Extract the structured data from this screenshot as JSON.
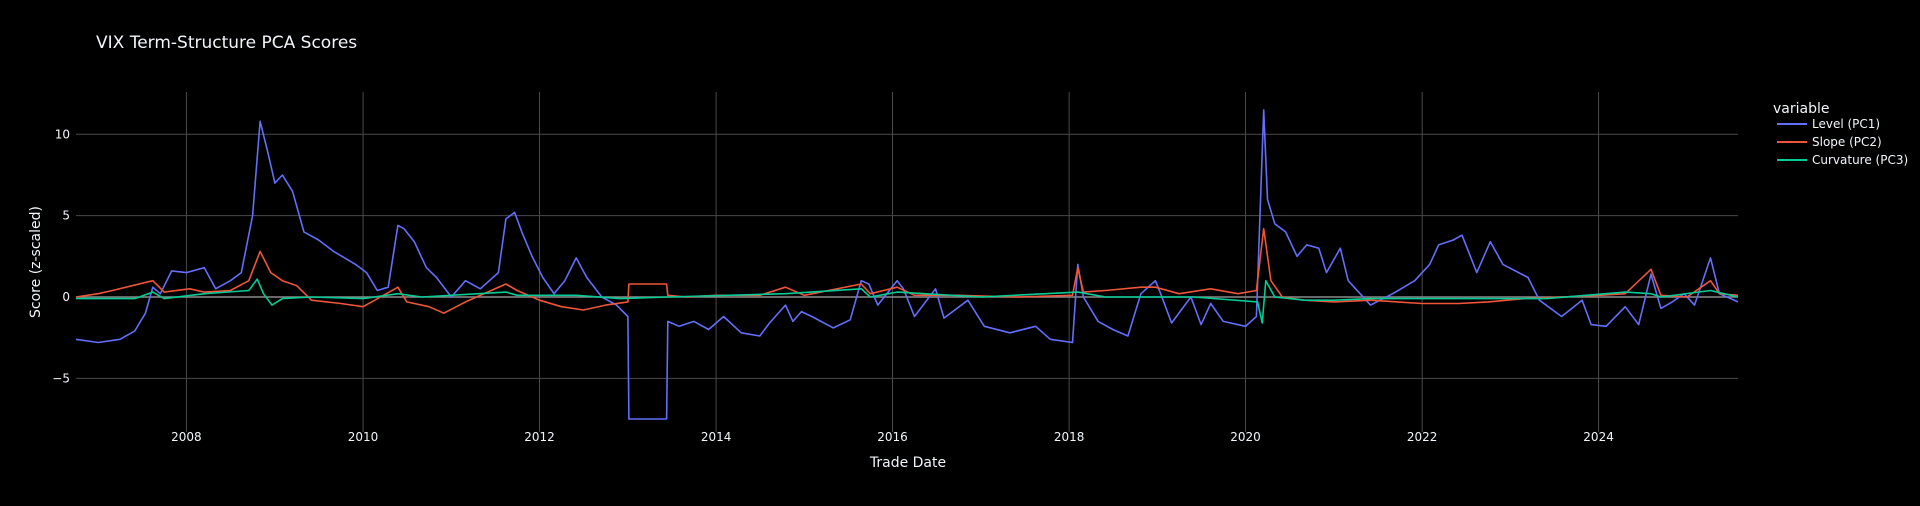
{
  "chart_data": {
    "type": "line",
    "title": "VIX Term-Structure PCA Scores",
    "xlabel": "Trade Date",
    "ylabel": "Score (z-scaled)",
    "x_range": [
      "2006-10-01",
      "2025-07-31"
    ],
    "ylim": [
      -8.3,
      12.6
    ],
    "x_ticks": [
      "2008",
      "2010",
      "2012",
      "2014",
      "2016",
      "2018",
      "2020",
      "2022",
      "2024"
    ],
    "y_ticks": [
      -5,
      0,
      5,
      10
    ],
    "y_tick_labels": [
      "−5",
      "0",
      "5",
      "10"
    ],
    "grid": true,
    "legend": {
      "title": "variable",
      "placement": "right"
    },
    "series": [
      {
        "name": "Level (PC1)",
        "color": "#636efa",
        "points": [
          [
            "2006-10-01",
            -2.6
          ],
          [
            "2007-01-01",
            -2.8
          ],
          [
            "2007-04-01",
            -2.6
          ],
          [
            "2007-06-01",
            -2.1
          ],
          [
            "2007-07-15",
            -1.0
          ],
          [
            "2007-08-15",
            0.6
          ],
          [
            "2007-09-15",
            0.2
          ],
          [
            "2007-11-01",
            1.6
          ],
          [
            "2008-01-01",
            1.5
          ],
          [
            "2008-03-15",
            1.8
          ],
          [
            "2008-05-01",
            0.5
          ],
          [
            "2008-07-01",
            1.0
          ],
          [
            "2008-08-15",
            1.5
          ],
          [
            "2008-10-01",
            5.0
          ],
          [
            "2008-11-01",
            10.8
          ],
          [
            "2008-12-01",
            9.0
          ],
          [
            "2009-01-01",
            7.0
          ],
          [
            "2009-02-01",
            7.5
          ],
          [
            "2009-03-15",
            6.5
          ],
          [
            "2009-05-01",
            4.0
          ],
          [
            "2009-07-01",
            3.5
          ],
          [
            "2009-09-01",
            2.8
          ],
          [
            "2009-12-01",
            2.0
          ],
          [
            "2010-01-15",
            1.5
          ],
          [
            "2010-03-01",
            0.4
          ],
          [
            "2010-04-15",
            0.6
          ],
          [
            "2010-05-25",
            4.4
          ],
          [
            "2010-06-20",
            4.2
          ],
          [
            "2010-08-01",
            3.4
          ],
          [
            "2010-09-20",
            1.8
          ],
          [
            "2010-11-01",
            1.2
          ],
          [
            "2011-01-01",
            0.0
          ],
          [
            "2011-03-01",
            1.0
          ],
          [
            "2011-05-01",
            0.5
          ],
          [
            "2011-07-15",
            1.5
          ],
          [
            "2011-08-15",
            4.8
          ],
          [
            "2011-09-20",
            5.2
          ],
          [
            "2011-10-20",
            4.0
          ],
          [
            "2011-12-01",
            2.5
          ],
          [
            "2012-01-15",
            1.2
          ],
          [
            "2012-03-01",
            0.2
          ],
          [
            "2012-04-15",
            1.0
          ],
          [
            "2012-06-01",
            2.4
          ],
          [
            "2012-07-15",
            1.2
          ],
          [
            "2012-09-15",
            0.0
          ],
          [
            "2012-11-15",
            -0.5
          ],
          [
            "2013-01-01",
            -1.2
          ],
          [
            "2013-01-05",
            -7.5
          ],
          [
            "2013-06-10",
            -7.5
          ],
          [
            "2013-06-15",
            -1.5
          ],
          [
            "2013-08-01",
            -1.8
          ],
          [
            "2013-10-01",
            -1.5
          ],
          [
            "2013-12-01",
            -2.0
          ],
          [
            "2014-02-01",
            -1.2
          ],
          [
            "2014-04-15",
            -2.2
          ],
          [
            "2014-07-01",
            -2.4
          ],
          [
            "2014-08-10",
            -1.6
          ],
          [
            "2014-10-15",
            -0.5
          ],
          [
            "2014-11-15",
            -1.5
          ],
          [
            "2014-12-20",
            -0.9
          ],
          [
            "2015-02-01",
            -1.2
          ],
          [
            "2015-05-01",
            -1.9
          ],
          [
            "2015-07-10",
            -1.4
          ],
          [
            "2015-08-25",
            1.0
          ],
          [
            "2015-09-25",
            0.8
          ],
          [
            "2015-11-01",
            -0.5
          ],
          [
            "2016-01-20",
            1.0
          ],
          [
            "2016-02-15",
            0.5
          ],
          [
            "2016-04-01",
            -1.2
          ],
          [
            "2016-06-27",
            0.5
          ],
          [
            "2016-08-01",
            -1.3
          ],
          [
            "2016-11-08",
            -0.2
          ],
          [
            "2017-01-15",
            -1.8
          ],
          [
            "2017-05-01",
            -2.2
          ],
          [
            "2017-08-15",
            -1.8
          ],
          [
            "2017-10-15",
            -2.6
          ],
          [
            "2018-01-15",
            -2.8
          ],
          [
            "2018-02-06",
            2.0
          ],
          [
            "2018-03-01",
            0.0
          ],
          [
            "2018-05-01",
            -1.5
          ],
          [
            "2018-07-01",
            -2.0
          ],
          [
            "2018-09-01",
            -2.4
          ],
          [
            "2018-10-25",
            0.2
          ],
          [
            "2018-12-24",
            1.0
          ],
          [
            "2019-01-15",
            0.2
          ],
          [
            "2019-03-01",
            -1.6
          ],
          [
            "2019-05-20",
            0.0
          ],
          [
            "2019-07-01",
            -1.7
          ],
          [
            "2019-08-10",
            -0.4
          ],
          [
            "2019-10-01",
            -1.5
          ],
          [
            "2020-01-01",
            -1.8
          ],
          [
            "2020-02-15",
            -1.2
          ],
          [
            "2020-03-16",
            11.5
          ],
          [
            "2020-04-01",
            6.0
          ],
          [
            "2020-05-01",
            4.5
          ],
          [
            "2020-06-15",
            4.0
          ],
          [
            "2020-08-01",
            2.5
          ],
          [
            "2020-09-10",
            3.2
          ],
          [
            "2020-10-30",
            3.0
          ],
          [
            "2020-12-01",
            1.5
          ],
          [
            "2021-01-27",
            3.0
          ],
          [
            "2021-03-01",
            1.0
          ],
          [
            "2021-06-01",
            -0.5
          ],
          [
            "2021-09-01",
            0.2
          ],
          [
            "2021-12-01",
            1.0
          ],
          [
            "2022-02-01",
            2.0
          ],
          [
            "2022-03-10",
            3.2
          ],
          [
            "2022-05-10",
            3.5
          ],
          [
            "2022-06-15",
            3.8
          ],
          [
            "2022-08-15",
            1.5
          ],
          [
            "2022-10-10",
            3.4
          ],
          [
            "2022-12-01",
            2.0
          ],
          [
            "2023-03-15",
            1.2
          ],
          [
            "2023-05-01",
            -0.2
          ],
          [
            "2023-08-01",
            -1.2
          ],
          [
            "2023-10-25",
            -0.2
          ],
          [
            "2023-12-01",
            -1.7
          ],
          [
            "2024-02-01",
            -1.8
          ],
          [
            "2024-04-20",
            -0.6
          ],
          [
            "2024-06-15",
            -1.7
          ],
          [
            "2024-08-05",
            1.4
          ],
          [
            "2024-09-15",
            -0.7
          ],
          [
            "2024-11-01",
            -0.3
          ],
          [
            "2024-12-20",
            0.2
          ],
          [
            "2025-02-01",
            -0.5
          ],
          [
            "2025-04-08",
            2.4
          ],
          [
            "2025-05-15",
            0.2
          ],
          [
            "2025-07-31",
            -0.3
          ]
        ]
      },
      {
        "name": "Slope (PC2)",
        "color": "#ef553b",
        "points": [
          [
            "2006-10-01",
            0.0
          ],
          [
            "2007-01-01",
            0.2
          ],
          [
            "2007-03-01",
            0.4
          ],
          [
            "2007-08-15",
            1.0
          ],
          [
            "2007-10-01",
            0.3
          ],
          [
            "2008-01-15",
            0.5
          ],
          [
            "2008-03-15",
            0.3
          ],
          [
            "2008-07-01",
            0.4
          ],
          [
            "2008-09-15",
            1.0
          ],
          [
            "2008-11-01",
            2.8
          ],
          [
            "2008-12-15",
            1.5
          ],
          [
            "2009-02-01",
            1.0
          ],
          [
            "2009-04-01",
            0.7
          ],
          [
            "2009-06-01",
            -0.2
          ],
          [
            "2009-10-01",
            -0.4
          ],
          [
            "2010-01-01",
            -0.6
          ],
          [
            "2010-05-25",
            0.6
          ],
          [
            "2010-07-01",
            -0.3
          ],
          [
            "2010-10-01",
            -0.6
          ],
          [
            "2010-12-01",
            -1.0
          ],
          [
            "2011-03-01",
            -0.3
          ],
          [
            "2011-08-15",
            0.8
          ],
          [
            "2011-10-01",
            0.4
          ],
          [
            "2012-01-01",
            -0.2
          ],
          [
            "2012-04-01",
            -0.6
          ],
          [
            "2012-07-01",
            -0.8
          ],
          [
            "2012-10-01",
            -0.5
          ],
          [
            "2013-01-01",
            -0.3
          ],
          [
            "2013-01-05",
            0.8
          ],
          [
            "2013-06-10",
            0.8
          ],
          [
            "2013-06-15",
            0.1
          ],
          [
            "2013-09-01",
            0.0
          ],
          [
            "2014-01-01",
            0.1
          ],
          [
            "2014-07-01",
            0.1
          ],
          [
            "2014-10-15",
            0.6
          ],
          [
            "2015-01-01",
            0.1
          ],
          [
            "2015-08-25",
            0.8
          ],
          [
            "2015-10-01",
            0.2
          ],
          [
            "2016-01-20",
            0.6
          ],
          [
            "2016-04-01",
            0.1
          ],
          [
            "2016-10-01",
            0.1
          ],
          [
            "2017-06-01",
            0.0
          ],
          [
            "2018-01-15",
            0.1
          ],
          [
            "2018-02-06",
            1.8
          ],
          [
            "2018-03-01",
            0.3
          ],
          [
            "2018-06-01",
            0.4
          ],
          [
            "2018-10-25",
            0.6
          ],
          [
            "2018-12-24",
            0.6
          ],
          [
            "2019-04-01",
            0.2
          ],
          [
            "2019-08-10",
            0.5
          ],
          [
            "2019-12-01",
            0.2
          ],
          [
            "2020-02-15",
            0.4
          ],
          [
            "2020-03-16",
            4.2
          ],
          [
            "2020-04-15",
            1.0
          ],
          [
            "2020-06-01",
            0.0
          ],
          [
            "2020-09-01",
            -0.2
          ],
          [
            "2021-01-01",
            -0.3
          ],
          [
            "2021-06-01",
            -0.2
          ],
          [
            "2022-01-01",
            -0.4
          ],
          [
            "2022-06-01",
            -0.4
          ],
          [
            "2022-10-01",
            -0.3
          ],
          [
            "2023-03-01",
            -0.1
          ],
          [
            "2023-08-01",
            0.0
          ],
          [
            "2024-01-01",
            0.1
          ],
          [
            "2024-04-20",
            0.2
          ],
          [
            "2024-08-05",
            1.7
          ],
          [
            "2024-09-15",
            0.1
          ],
          [
            "2025-01-01",
            0.0
          ],
          [
            "2025-04-08",
            1.0
          ],
          [
            "2025-05-15",
            0.2
          ],
          [
            "2025-07-31",
            0.1
          ]
        ]
      },
      {
        "name": "Curvature (PC3)",
        "color": "#00cc96",
        "points": [
          [
            "2006-10-01",
            -0.1
          ],
          [
            "2007-06-01",
            -0.1
          ],
          [
            "2007-08-15",
            0.3
          ],
          [
            "2007-10-01",
            -0.1
          ],
          [
            "2008-03-15",
            0.2
          ],
          [
            "2008-09-15",
            0.4
          ],
          [
            "2008-10-20",
            1.1
          ],
          [
            "2008-11-15",
            0.2
          ],
          [
            "2008-12-20",
            -0.5
          ],
          [
            "2009-02-01",
            -0.1
          ],
          [
            "2009-06-01",
            0.0
          ],
          [
            "2010-01-01",
            -0.1
          ],
          [
            "2010-05-25",
            0.2
          ],
          [
            "2010-09-01",
            0.0
          ],
          [
            "2011-08-15",
            0.3
          ],
          [
            "2011-10-01",
            0.1
          ],
          [
            "2012-06-01",
            0.1
          ],
          [
            "2012-12-01",
            -0.1
          ],
          [
            "2013-06-15",
            0.0
          ],
          [
            "2014-10-15",
            0.2
          ],
          [
            "2015-08-25",
            0.5
          ],
          [
            "2015-10-01",
            0.0
          ],
          [
            "2016-01-20",
            0.3
          ],
          [
            "2017-01-01",
            0.0
          ],
          [
            "2018-02-06",
            0.3
          ],
          [
            "2018-06-01",
            0.0
          ],
          [
            "2019-06-01",
            0.0
          ],
          [
            "2020-02-20",
            -0.3
          ],
          [
            "2020-03-10",
            -1.6
          ],
          [
            "2020-03-25",
            1.0
          ],
          [
            "2020-05-01",
            0.0
          ],
          [
            "2020-09-01",
            -0.2
          ],
          [
            "2021-01-01",
            -0.2
          ],
          [
            "2021-06-01",
            -0.1
          ],
          [
            "2022-06-01",
            -0.1
          ],
          [
            "2023-06-01",
            -0.1
          ],
          [
            "2024-04-20",
            0.3
          ],
          [
            "2024-08-05",
            0.2
          ],
          [
            "2024-09-15",
            0.0
          ],
          [
            "2025-04-08",
            0.4
          ],
          [
            "2025-07-31",
            0.0
          ]
        ]
      }
    ]
  }
}
